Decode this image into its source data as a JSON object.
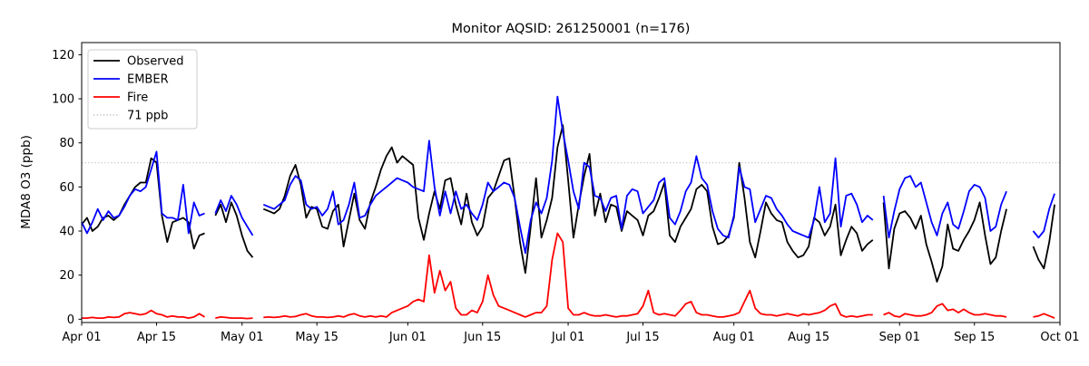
{
  "chart_data": {
    "type": "line",
    "title": "Monitor AQSID: 261250001 (n=176)",
    "n": 176,
    "ylabel": "MDA8 O3 (ppb)",
    "xlabel": "",
    "ylim": [
      -1.5,
      125.5
    ],
    "xlim_days": [
      0,
      183
    ],
    "grid": false,
    "legend_position": "upper left",
    "y_ticks": [
      0,
      20,
      40,
      60,
      80,
      100,
      120
    ],
    "x_ticks": [
      {
        "label": "Apr 01",
        "day": 0
      },
      {
        "label": "Apr 15",
        "day": 14
      },
      {
        "label": "May 01",
        "day": 30
      },
      {
        "label": "May 15",
        "day": 44
      },
      {
        "label": "Jun 01",
        "day": 61
      },
      {
        "label": "Jun 15",
        "day": 75
      },
      {
        "label": "Jul 01",
        "day": 91
      },
      {
        "label": "Jul 15",
        "day": 105
      },
      {
        "label": "Aug 01",
        "day": 122
      },
      {
        "label": "Aug 15",
        "day": 136
      },
      {
        "label": "Sep 01",
        "day": 153
      },
      {
        "label": "Sep 15",
        "day": 167
      },
      {
        "label": "Oct 01",
        "day": 183
      }
    ],
    "threshold": {
      "label": "71 ppb",
      "value": 71,
      "color": "#c9c9c9",
      "style": "dotted"
    },
    "series": [
      {
        "name": "Observed",
        "color": "#000000",
        "values": [
          43,
          46,
          40,
          42,
          46,
          47,
          45,
          47,
          52,
          56,
          60,
          62,
          62,
          73,
          71,
          47,
          35,
          44,
          45,
          46,
          44,
          32,
          38,
          39,
          null,
          47,
          52,
          44,
          53,
          47,
          38,
          31,
          28,
          null,
          50,
          49,
          48,
          50,
          56,
          65,
          70,
          61,
          46,
          51,
          50,
          42,
          41,
          49,
          52,
          33,
          45,
          57,
          45,
          41,
          53,
          60,
          68,
          74,
          78,
          71,
          74,
          72,
          70,
          46,
          36,
          48,
          58,
          50,
          63,
          64,
          52,
          43,
          57,
          44,
          38,
          42,
          55,
          58,
          65,
          72,
          73,
          55,
          35,
          21,
          42,
          64,
          37,
          45,
          55,
          78,
          88,
          63,
          37,
          52,
          65,
          75,
          47,
          57,
          44,
          52,
          51,
          40,
          49,
          47,
          45,
          38,
          47,
          49,
          55,
          62,
          38,
          35,
          42,
          46,
          50,
          59,
          61,
          58,
          42,
          34,
          35,
          38,
          46,
          71,
          55,
          35,
          28,
          40,
          53,
          48,
          45,
          44,
          35,
          31,
          28,
          29,
          33,
          46,
          44,
          38,
          42,
          52,
          29,
          36,
          42,
          39,
          31,
          34,
          36,
          null,
          53,
          23,
          41,
          48,
          49,
          46,
          41,
          47,
          34,
          26,
          17,
          24,
          43,
          32,
          31,
          36,
          40,
          45,
          53,
          38,
          25,
          28,
          40,
          50,
          null,
          null,
          null,
          null,
          33,
          27,
          23,
          35,
          52
        ]
      },
      {
        "name": "EMBER",
        "color": "#0000ff",
        "values": [
          44,
          39,
          44,
          50,
          45,
          49,
          46,
          47,
          51,
          56,
          59,
          58,
          60,
          68,
          76,
          48,
          46,
          46,
          45,
          61,
          39,
          53,
          47,
          48,
          null,
          48,
          54,
          49,
          56,
          52,
          46,
          42,
          38,
          null,
          52,
          51,
          50,
          52,
          54,
          61,
          65,
          63,
          52,
          50,
          51,
          47,
          50,
          58,
          43,
          45,
          52,
          62,
          46,
          47,
          52,
          56,
          58,
          60,
          62,
          64,
          63,
          62,
          60,
          59,
          58,
          81,
          60,
          47,
          58,
          48,
          58,
          50,
          52,
          48,
          45,
          52,
          62,
          58,
          60,
          62,
          61,
          55,
          42,
          30,
          45,
          53,
          48,
          55,
          72,
          101,
          85,
          72,
          58,
          50,
          71,
          69,
          56,
          55,
          49,
          55,
          56,
          41,
          56,
          59,
          58,
          48,
          51,
          54,
          62,
          64,
          46,
          43,
          49,
          58,
          62,
          74,
          64,
          61,
          49,
          41,
          38,
          37,
          47,
          69,
          60,
          59,
          44,
          50,
          56,
          55,
          50,
          47,
          43,
          40,
          39,
          38,
          37,
          45,
          60,
          44,
          48,
          73,
          42,
          56,
          57,
          52,
          44,
          47,
          45,
          null,
          56,
          37,
          49,
          59,
          64,
          65,
          60,
          62,
          53,
          44,
          38,
          48,
          53,
          43,
          41,
          49,
          58,
          61,
          60,
          55,
          40,
          42,
          52,
          58,
          null,
          null,
          null,
          null,
          40,
          37,
          40,
          50,
          57
        ]
      },
      {
        "name": "Fire",
        "color": "#ff0000",
        "values": [
          0.5,
          0.5,
          0.8,
          0.5,
          0.5,
          1,
          0.8,
          1,
          2.5,
          3,
          2.5,
          2,
          2.5,
          4,
          2.5,
          2,
          1,
          1.5,
          1,
          1,
          0.5,
          1,
          2.5,
          1,
          null,
          0.5,
          1,
          0.8,
          0.5,
          0.5,
          0.5,
          0.3,
          0.5,
          null,
          0.8,
          1,
          0.8,
          1,
          1.5,
          1,
          1.2,
          2,
          2.5,
          1.5,
          1,
          1,
          0.8,
          1,
          1.5,
          1,
          2,
          2.5,
          1.5,
          1,
          1.5,
          1,
          1.5,
          1,
          3,
          4,
          5,
          6,
          8,
          9,
          8,
          29,
          12,
          22,
          13,
          17,
          5,
          2,
          2,
          4,
          3,
          8,
          20,
          11,
          6,
          5,
          4,
          3,
          2,
          1,
          2,
          3,
          3,
          6,
          27,
          39,
          35,
          5,
          2,
          2,
          3,
          2,
          1.5,
          1.5,
          2,
          1.5,
          1,
          1.5,
          1.5,
          2,
          2.5,
          6,
          13,
          3,
          2,
          2.5,
          2,
          1.5,
          4,
          7,
          8,
          3,
          2,
          2,
          1.5,
          1,
          1,
          1.5,
          2,
          3,
          8,
          13,
          5,
          2.5,
          2,
          2,
          1.5,
          2,
          2.5,
          2,
          1.5,
          2.4,
          2,
          2.5,
          3,
          4,
          6,
          7,
          2,
          1,
          1.5,
          1,
          1.5,
          2,
          2,
          null,
          2,
          3,
          1.5,
          1,
          2.5,
          2,
          1.5,
          1.5,
          2,
          3,
          6,
          7,
          4,
          4.5,
          3,
          4.5,
          3,
          2,
          2,
          2.5,
          2,
          1.5,
          1.5,
          1,
          null,
          null,
          null,
          null,
          1,
          1.5,
          2.5,
          1.5,
          0.5
        ]
      }
    ]
  }
}
